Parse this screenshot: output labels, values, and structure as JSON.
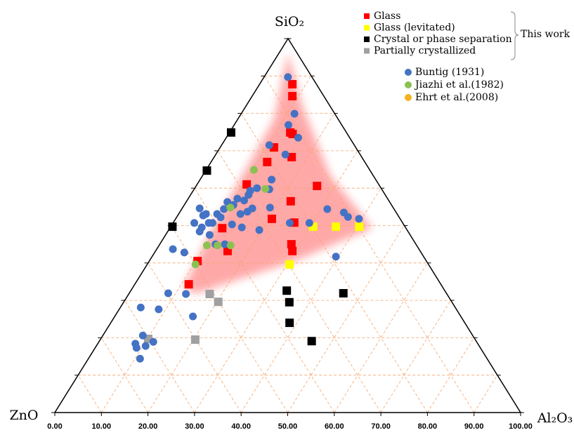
{
  "chart_data": {
    "type": "ternary",
    "top_label": "SiO₂",
    "left_label": "ZnO",
    "right_label": "Al₂O₃",
    "xlim": [
      0,
      100
    ],
    "xticks": [
      {
        "value": 0,
        "label": "0.00"
      },
      {
        "value": 10,
        "label": "10.00"
      },
      {
        "value": 20,
        "label": "20.00"
      },
      {
        "value": 30,
        "label": "30.00"
      },
      {
        "value": 40,
        "label": "40.00"
      },
      {
        "value": 50,
        "label": "50.00"
      },
      {
        "value": 60,
        "label": "60.00"
      },
      {
        "value": 70,
        "label": "70.00"
      },
      {
        "value": 80,
        "label": "80.00"
      },
      {
        "value": 90,
        "label": "90.00"
      },
      {
        "value": 100,
        "label": "100.00"
      }
    ],
    "grid": true,
    "legend_group_note": "This work",
    "series": [
      {
        "name": "Glass",
        "color": "#ff0000",
        "marker": "square",
        "group": true,
        "sio2": [
          87.8,
          84.6,
          74.9,
          74.5,
          70.9,
          68.3,
          67.0,
          61.0,
          60.6,
          56.5,
          51.8,
          50.8,
          49.3,
          45.0,
          43.2,
          43.2,
          40.5,
          34.3
        ],
        "al2o3": [
          7.1,
          8.7,
          13.1,
          13.8,
          11.6,
          16.7,
          12.1,
          10.7,
          26.0,
          22.4,
          20.7,
          26.0,
          11.3,
          28.3,
          29.4,
          15.5,
          10.4,
          11.6
        ]
      },
      {
        "name": "Glass (levitated)",
        "color": "#ffff00",
        "marker": "square",
        "group": true,
        "sio2": [
          49.7,
          49.7,
          49.7,
          39.6
        ],
        "al2o3": [
          30.6,
          35.5,
          40.5,
          30.6
        ]
      },
      {
        "name": "Crystal or phase separation",
        "color": "#000000",
        "marker": "square",
        "group": true,
        "sio2": [
          74.9,
          64.7,
          49.7,
          32.6,
          29.5,
          31.9,
          24.0,
          19.1
        ],
        "al2o3": [
          0.4,
          0.3,
          0.4,
          33.5,
          35.6,
          46.0,
          38.4,
          45.6
        ]
      },
      {
        "name": "Partially crystallized",
        "color": "#a0a0a0",
        "marker": "square",
        "group": true,
        "sio2": [
          31.7,
          29.6,
          19.7,
          19.5
        ],
        "al2o3": [
          17.4,
          20.3,
          10.2,
          20.4
        ]
      },
      {
        "name": "Buntig (1931)",
        "color": "#4472c4",
        "marker": "circle",
        "group": false,
        "sio2": [
          89.7,
          79.9,
          73.5,
          76.9,
          71.5,
          69.0,
          62.3,
          60.0,
          59.3,
          59.7,
          58.2,
          56.7,
          57.2,
          55.5,
          56.3,
          54.4,
          53.1,
          53.1,
          54.6,
          52.7,
          52.2,
          50.7,
          50.7,
          50.7,
          49.5,
          48.4,
          47.5,
          50.3,
          49.5,
          53.7,
          48.8,
          54.6,
          54.8,
          50.7,
          50.7,
          54.4,
          53.5,
          52.3,
          51.8,
          41.7,
          45.0,
          45.0,
          53.1,
          43.7,
          42.8,
          31.7,
          31.9,
          28.1,
          27.6,
          25.7,
          20.6,
          18.4,
          18.9,
          17.8,
          17.3,
          14.4
        ],
        "al2o3": [
          5.2,
          11.5,
          15.5,
          11.7,
          10.3,
          15.0,
          15.4,
          13.4,
          12.3,
          16.2,
          12.5,
          12.3,
          10.6,
          10.6,
          8.9,
          9.1,
          8.3,
          5.9,
          3.8,
          5.5,
          9.5,
          8.5,
          7.7,
          4.6,
          6.8,
          6.9,
          9.5,
          12.9,
          15.4,
          14.5,
          19.5,
          15.1,
          18.8,
          25.1,
          29.3,
          31.3,
          35.3,
          36.8,
          39.4,
          39.5,
          12.0,
          14.0,
          13.3,
          3.5,
          6.4,
          12.3,
          8.4,
          4.4,
          8.5,
          16.8,
          8.6,
          8.1,
          11.7,
          10.6,
          8.9,
          11.1
        ]
      },
      {
        "name": "Jiazhi et al.(1982)",
        "color": "#8cc152",
        "marker": "circle",
        "group": false,
        "sio2": [
          64.9,
          59.8,
          54.8,
          44.7,
          44.7,
          44.7,
          39.6
        ],
        "al2o3": [
          10.3,
          15.3,
          10.3,
          10.3,
          12.6,
          15.4,
          10.4
        ]
      },
      {
        "name": "Ehrt et al.(2008)",
        "color": "#f5b11f",
        "marker": "circle",
        "group": false,
        "sio2": [],
        "al2o3": []
      }
    ]
  }
}
